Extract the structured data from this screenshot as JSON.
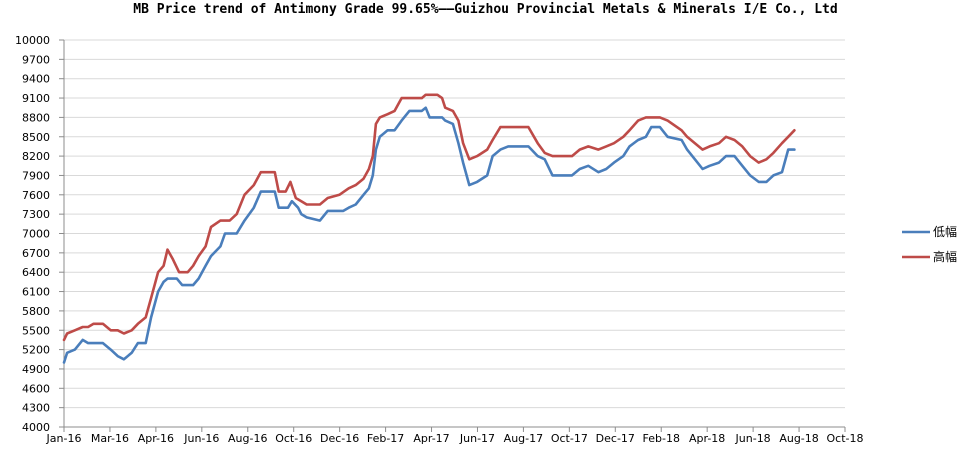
{
  "chart_data": {
    "type": "line",
    "title": "MB Price trend of Antimony Grade 99.65%——Guizhou Provincial Metals & Minerals I/E Co., Ltd",
    "xlabel": "",
    "ylabel": "",
    "ylim": [
      4000,
      10000
    ],
    "y_ticks": [
      "4000",
      "4300",
      "4600",
      "4900",
      "5200",
      "5500",
      "5800",
      "6100",
      "6400",
      "6700",
      "7000",
      "7300",
      "7600",
      "7900",
      "8200",
      "8500",
      "8800",
      "9100",
      "9400",
      "9700",
      "10000"
    ],
    "x_ticks": [
      "Jan-16",
      "Mar-16",
      "Apr-16",
      "Jun-16",
      "Aug-16",
      "Oct-16",
      "Dec-16",
      "Feb-17",
      "Apr-17",
      "Jun-17",
      "Aug-17",
      "Oct-17",
      "Dec-17",
      "Feb-18",
      "Apr-18",
      "Jun-18",
      "Aug-18",
      "Oct-18"
    ],
    "xlim": [
      "2016-01-01",
      "2018-10-01"
    ],
    "grid": true,
    "legend_position": "right",
    "series": [
      {
        "name": "低幅",
        "color": "#4a7ebb",
        "points": [
          [
            "2016-01-01",
            5000
          ],
          [
            "2016-01-05",
            5150
          ],
          [
            "2016-01-15",
            5200
          ],
          [
            "2016-01-25",
            5350
          ],
          [
            "2016-02-01",
            5300
          ],
          [
            "2016-02-20",
            5300
          ],
          [
            "2016-03-01",
            5200
          ],
          [
            "2016-03-10",
            5100
          ],
          [
            "2016-03-18",
            5050
          ],
          [
            "2016-03-28",
            5150
          ],
          [
            "2016-04-05",
            5300
          ],
          [
            "2016-04-15",
            5300
          ],
          [
            "2016-04-22",
            5700
          ],
          [
            "2016-05-01",
            6100
          ],
          [
            "2016-05-08",
            6250
          ],
          [
            "2016-05-13",
            6300
          ],
          [
            "2016-05-25",
            6300
          ],
          [
            "2016-06-01",
            6200
          ],
          [
            "2016-06-15",
            6200
          ],
          [
            "2016-06-22",
            6300
          ],
          [
            "2016-07-01",
            6500
          ],
          [
            "2016-07-08",
            6650
          ],
          [
            "2016-07-20",
            6800
          ],
          [
            "2016-07-26",
            7000
          ],
          [
            "2016-08-10",
            7000
          ],
          [
            "2016-08-20",
            7200
          ],
          [
            "2016-09-01",
            7400
          ],
          [
            "2016-09-10",
            7650
          ],
          [
            "2016-09-28",
            7650
          ],
          [
            "2016-10-03",
            7400
          ],
          [
            "2016-10-15",
            7400
          ],
          [
            "2016-10-20",
            7500
          ],
          [
            "2016-10-28",
            7400
          ],
          [
            "2016-11-01",
            7300
          ],
          [
            "2016-11-08",
            7250
          ],
          [
            "2016-11-25",
            7200
          ],
          [
            "2016-12-05",
            7350
          ],
          [
            "2016-12-25",
            7350
          ],
          [
            "2017-01-01",
            7400
          ],
          [
            "2017-01-10",
            7450
          ],
          [
            "2017-01-20",
            7600
          ],
          [
            "2017-01-27",
            7700
          ],
          [
            "2017-02-01",
            7900
          ],
          [
            "2017-02-05",
            8300
          ],
          [
            "2017-02-10",
            8500
          ],
          [
            "2017-02-20",
            8600
          ],
          [
            "2017-03-01",
            8600
          ],
          [
            "2017-03-10",
            8750
          ],
          [
            "2017-03-20",
            8900
          ],
          [
            "2017-04-05",
            8900
          ],
          [
            "2017-04-10",
            8950
          ],
          [
            "2017-04-15",
            8800
          ],
          [
            "2017-05-01",
            8800
          ],
          [
            "2017-05-05",
            8750
          ],
          [
            "2017-05-15",
            8700
          ],
          [
            "2017-05-22",
            8400
          ],
          [
            "2017-05-28",
            8100
          ],
          [
            "2017-06-05",
            7750
          ],
          [
            "2017-06-15",
            7800
          ],
          [
            "2017-06-28",
            7900
          ],
          [
            "2017-07-05",
            8200
          ],
          [
            "2017-07-15",
            8300
          ],
          [
            "2017-07-25",
            8350
          ],
          [
            "2017-08-20",
            8350
          ],
          [
            "2017-09-01",
            8200
          ],
          [
            "2017-09-10",
            8150
          ],
          [
            "2017-09-20",
            7900
          ],
          [
            "2017-10-01",
            7900
          ],
          [
            "2017-10-15",
            7900
          ],
          [
            "2017-10-25",
            8000
          ],
          [
            "2017-11-05",
            8050
          ],
          [
            "2017-11-18",
            7950
          ],
          [
            "2017-11-28",
            8000
          ],
          [
            "2017-12-08",
            8100
          ],
          [
            "2017-12-20",
            8200
          ],
          [
            "2017-12-28",
            8350
          ],
          [
            "2018-01-08",
            8450
          ],
          [
            "2018-01-18",
            8500
          ],
          [
            "2018-01-25",
            8650
          ],
          [
            "2018-02-05",
            8650
          ],
          [
            "2018-02-15",
            8500
          ],
          [
            "2018-03-05",
            8450
          ],
          [
            "2018-03-12",
            8300
          ],
          [
            "2018-03-22",
            8150
          ],
          [
            "2018-04-01",
            8000
          ],
          [
            "2018-04-10",
            8050
          ],
          [
            "2018-04-22",
            8100
          ],
          [
            "2018-05-01",
            8200
          ],
          [
            "2018-05-12",
            8200
          ],
          [
            "2018-05-22",
            8050
          ],
          [
            "2018-06-01",
            7900
          ],
          [
            "2018-06-12",
            7800
          ],
          [
            "2018-06-22",
            7800
          ],
          [
            "2018-07-01",
            7900
          ],
          [
            "2018-07-12",
            7950
          ],
          [
            "2018-07-20",
            8300
          ],
          [
            "2018-07-28",
            8300
          ]
        ]
      },
      {
        "name": "高幅",
        "color": "#be4b48",
        "points": [
          [
            "2016-01-01",
            5350
          ],
          [
            "2016-01-05",
            5450
          ],
          [
            "2016-01-15",
            5500
          ],
          [
            "2016-01-25",
            5550
          ],
          [
            "2016-02-01",
            5550
          ],
          [
            "2016-02-08",
            5600
          ],
          [
            "2016-02-20",
            5600
          ],
          [
            "2016-03-01",
            5500
          ],
          [
            "2016-03-10",
            5500
          ],
          [
            "2016-03-18",
            5450
          ],
          [
            "2016-03-28",
            5500
          ],
          [
            "2016-04-05",
            5600
          ],
          [
            "2016-04-15",
            5700
          ],
          [
            "2016-04-22",
            6000
          ],
          [
            "2016-05-01",
            6400
          ],
          [
            "2016-05-08",
            6500
          ],
          [
            "2016-05-13",
            6750
          ],
          [
            "2016-05-20",
            6600
          ],
          [
            "2016-05-28",
            6400
          ],
          [
            "2016-06-08",
            6400
          ],
          [
            "2016-06-15",
            6500
          ],
          [
            "2016-06-22",
            6650
          ],
          [
            "2016-07-01",
            6800
          ],
          [
            "2016-07-08",
            7100
          ],
          [
            "2016-07-20",
            7200
          ],
          [
            "2016-08-01",
            7200
          ],
          [
            "2016-08-10",
            7300
          ],
          [
            "2016-08-20",
            7600
          ],
          [
            "2016-09-01",
            7750
          ],
          [
            "2016-09-10",
            7950
          ],
          [
            "2016-09-28",
            7950
          ],
          [
            "2016-10-03",
            7650
          ],
          [
            "2016-10-12",
            7650
          ],
          [
            "2016-10-18",
            7800
          ],
          [
            "2016-10-25",
            7550
          ],
          [
            "2016-11-01",
            7500
          ],
          [
            "2016-11-08",
            7450
          ],
          [
            "2016-11-25",
            7450
          ],
          [
            "2016-12-05",
            7550
          ],
          [
            "2016-12-20",
            7600
          ],
          [
            "2017-01-01",
            7700
          ],
          [
            "2017-01-10",
            7750
          ],
          [
            "2017-01-20",
            7850
          ],
          [
            "2017-01-27",
            8000
          ],
          [
            "2017-02-01",
            8200
          ],
          [
            "2017-02-05",
            8700
          ],
          [
            "2017-02-10",
            8800
          ],
          [
            "2017-02-20",
            8850
          ],
          [
            "2017-03-01",
            8900
          ],
          [
            "2017-03-10",
            9100
          ],
          [
            "2017-03-25",
            9100
          ],
          [
            "2017-04-05",
            9100
          ],
          [
            "2017-04-10",
            9150
          ],
          [
            "2017-04-25",
            9150
          ],
          [
            "2017-05-01",
            9100
          ],
          [
            "2017-05-05",
            8950
          ],
          [
            "2017-05-15",
            8900
          ],
          [
            "2017-05-22",
            8750
          ],
          [
            "2017-05-28",
            8400
          ],
          [
            "2017-06-05",
            8150
          ],
          [
            "2017-06-15",
            8200
          ],
          [
            "2017-06-28",
            8300
          ],
          [
            "2017-07-05",
            8450
          ],
          [
            "2017-07-15",
            8650
          ],
          [
            "2017-07-25",
            8650
          ],
          [
            "2017-08-20",
            8650
          ],
          [
            "2017-09-01",
            8400
          ],
          [
            "2017-09-10",
            8250
          ],
          [
            "2017-09-20",
            8200
          ],
          [
            "2017-10-01",
            8200
          ],
          [
            "2017-10-15",
            8200
          ],
          [
            "2017-10-25",
            8300
          ],
          [
            "2017-11-05",
            8350
          ],
          [
            "2017-11-18",
            8300
          ],
          [
            "2017-11-28",
            8350
          ],
          [
            "2017-12-08",
            8400
          ],
          [
            "2017-12-20",
            8500
          ],
          [
            "2017-12-28",
            8600
          ],
          [
            "2018-01-08",
            8750
          ],
          [
            "2018-01-18",
            8800
          ],
          [
            "2018-02-05",
            8800
          ],
          [
            "2018-02-15",
            8750
          ],
          [
            "2018-03-05",
            8600
          ],
          [
            "2018-03-12",
            8500
          ],
          [
            "2018-03-22",
            8400
          ],
          [
            "2018-04-01",
            8300
          ],
          [
            "2018-04-10",
            8350
          ],
          [
            "2018-04-22",
            8400
          ],
          [
            "2018-05-01",
            8500
          ],
          [
            "2018-05-12",
            8450
          ],
          [
            "2018-05-22",
            8350
          ],
          [
            "2018-06-01",
            8200
          ],
          [
            "2018-06-12",
            8100
          ],
          [
            "2018-06-22",
            8150
          ],
          [
            "2018-07-01",
            8250
          ],
          [
            "2018-07-12",
            8400
          ],
          [
            "2018-07-20",
            8500
          ],
          [
            "2018-07-28",
            8600
          ]
        ]
      }
    ]
  }
}
